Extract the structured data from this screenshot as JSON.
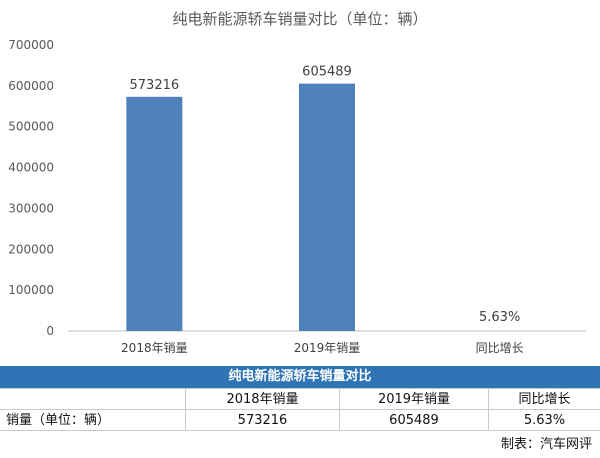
{
  "chart_data": {
    "type": "bar",
    "title": "纯电新能源轿车销量对比（单位：辆）",
    "categories": [
      "2018年销量",
      "2019年销量",
      "同比增长"
    ],
    "values": [
      573216,
      605489,
      null
    ],
    "data_labels": [
      "573216",
      "605489",
      "5.63%"
    ],
    "yticks": [
      "0",
      "100000",
      "200000",
      "300000",
      "400000",
      "500000",
      "600000",
      "700000"
    ],
    "ylim": [
      0,
      700000
    ],
    "grid": false,
    "bar_color": "#4f81bd"
  },
  "table": {
    "title": "纯电新能源轿车销量对比",
    "headers": [
      "",
      "2018年销量",
      "2019年销量",
      "同比增长"
    ],
    "row": [
      "销量（单位：辆）",
      "573216",
      "605489",
      "5.63%"
    ],
    "credit": "制表：汽车网评"
  }
}
